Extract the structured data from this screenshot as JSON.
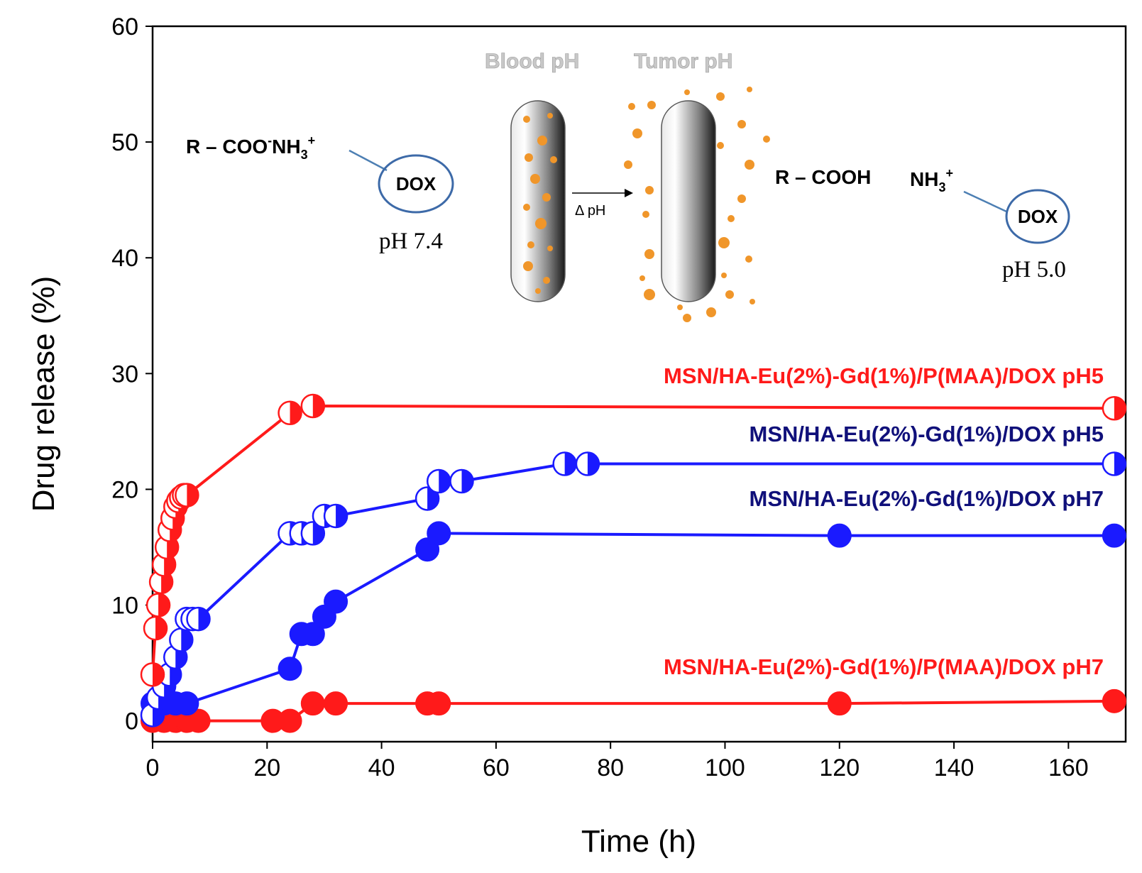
{
  "chart_data": {
    "type": "line",
    "title": "",
    "xlabel": "Time (h)",
    "ylabel": "Drug release (%)",
    "xlim": [
      0,
      170
    ],
    "ylim": [
      -1.8,
      60
    ],
    "xticks": [
      "0",
      "20",
      "40",
      "60",
      "80",
      "100",
      "120",
      "140",
      "160"
    ],
    "yticks": [
      "0",
      "10",
      "20",
      "30",
      "40",
      "50",
      "60"
    ],
    "series": [
      {
        "name": "MSN/HA-Eu(2%)-Gd(1%)/P(MAA)/DOX pH5",
        "color": "#ff1a1a",
        "marker": "half-filled",
        "x": [
          0,
          0.5,
          1,
          1.5,
          2,
          2.5,
          3,
          3.5,
          4,
          4.5,
          5,
          5.5,
          6,
          24,
          28,
          168
        ],
        "y": [
          4.0,
          8.0,
          10.0,
          12.0,
          13.5,
          15.0,
          16.5,
          17.5,
          18.5,
          19.0,
          19.3,
          19.5,
          19.5,
          26.6,
          27.2,
          27.0
        ]
      },
      {
        "name": "MSN/HA-Eu(2%)-Gd(1%)/DOX pH5",
        "color": "#1a1aff",
        "marker": "half-filled",
        "x": [
          0,
          1,
          2,
          3,
          4,
          5,
          6,
          7,
          8,
          24,
          26,
          28,
          30,
          32,
          48,
          50,
          54,
          72,
          76,
          168
        ],
        "y": [
          0.5,
          2.0,
          3.0,
          4.0,
          5.5,
          7.0,
          8.8,
          8.8,
          8.8,
          16.2,
          16.2,
          16.2,
          17.7,
          17.7,
          19.2,
          20.7,
          20.7,
          22.2,
          22.2,
          22.2
        ]
      },
      {
        "name": "MSN/HA-Eu(2%)-Gd(1%)/DOX pH7",
        "color": "#1a1aff",
        "marker": "filled",
        "x": [
          0,
          2,
          4,
          6,
          24,
          26,
          28,
          30,
          32,
          48,
          50,
          120,
          168
        ],
        "y": [
          1.5,
          1.5,
          1.5,
          1.5,
          4.5,
          7.5,
          7.5,
          9.0,
          10.3,
          14.8,
          16.2,
          16.0,
          16.0
        ]
      },
      {
        "name": "MSN/HA-Eu(2%)-Gd(1%)/P(MAA)/DOX pH7",
        "color": "#ff1a1a",
        "marker": "filled",
        "x": [
          0,
          2,
          4,
          6,
          8,
          21,
          24,
          28,
          32,
          48,
          50,
          120,
          168
        ],
        "y": [
          0.0,
          0.0,
          0.0,
          0.0,
          0.0,
          0.0,
          0.0,
          1.5,
          1.5,
          1.5,
          1.5,
          1.5,
          1.7
        ]
      }
    ],
    "annotations": {
      "left_formula": "R – COO",
      "left_formula_sup1": "-",
      "left_formula_nh": "NH",
      "left_formula_sub": "3",
      "left_formula_sup2": "+",
      "left_dox": "DOX",
      "left_ph": "pH  7.4",
      "blood_ph": "Blood pH",
      "tumor_ph": "Tumor pH",
      "delta_ph": "Δ pH",
      "right_formula": "R – COOH",
      "right_nh": "NH",
      "right_nh_sub": "3",
      "right_nh_sup": "+",
      "right_dox": "DOX",
      "right_ph": "pH 5.0"
    },
    "grid": false,
    "legend": "inline-right"
  }
}
